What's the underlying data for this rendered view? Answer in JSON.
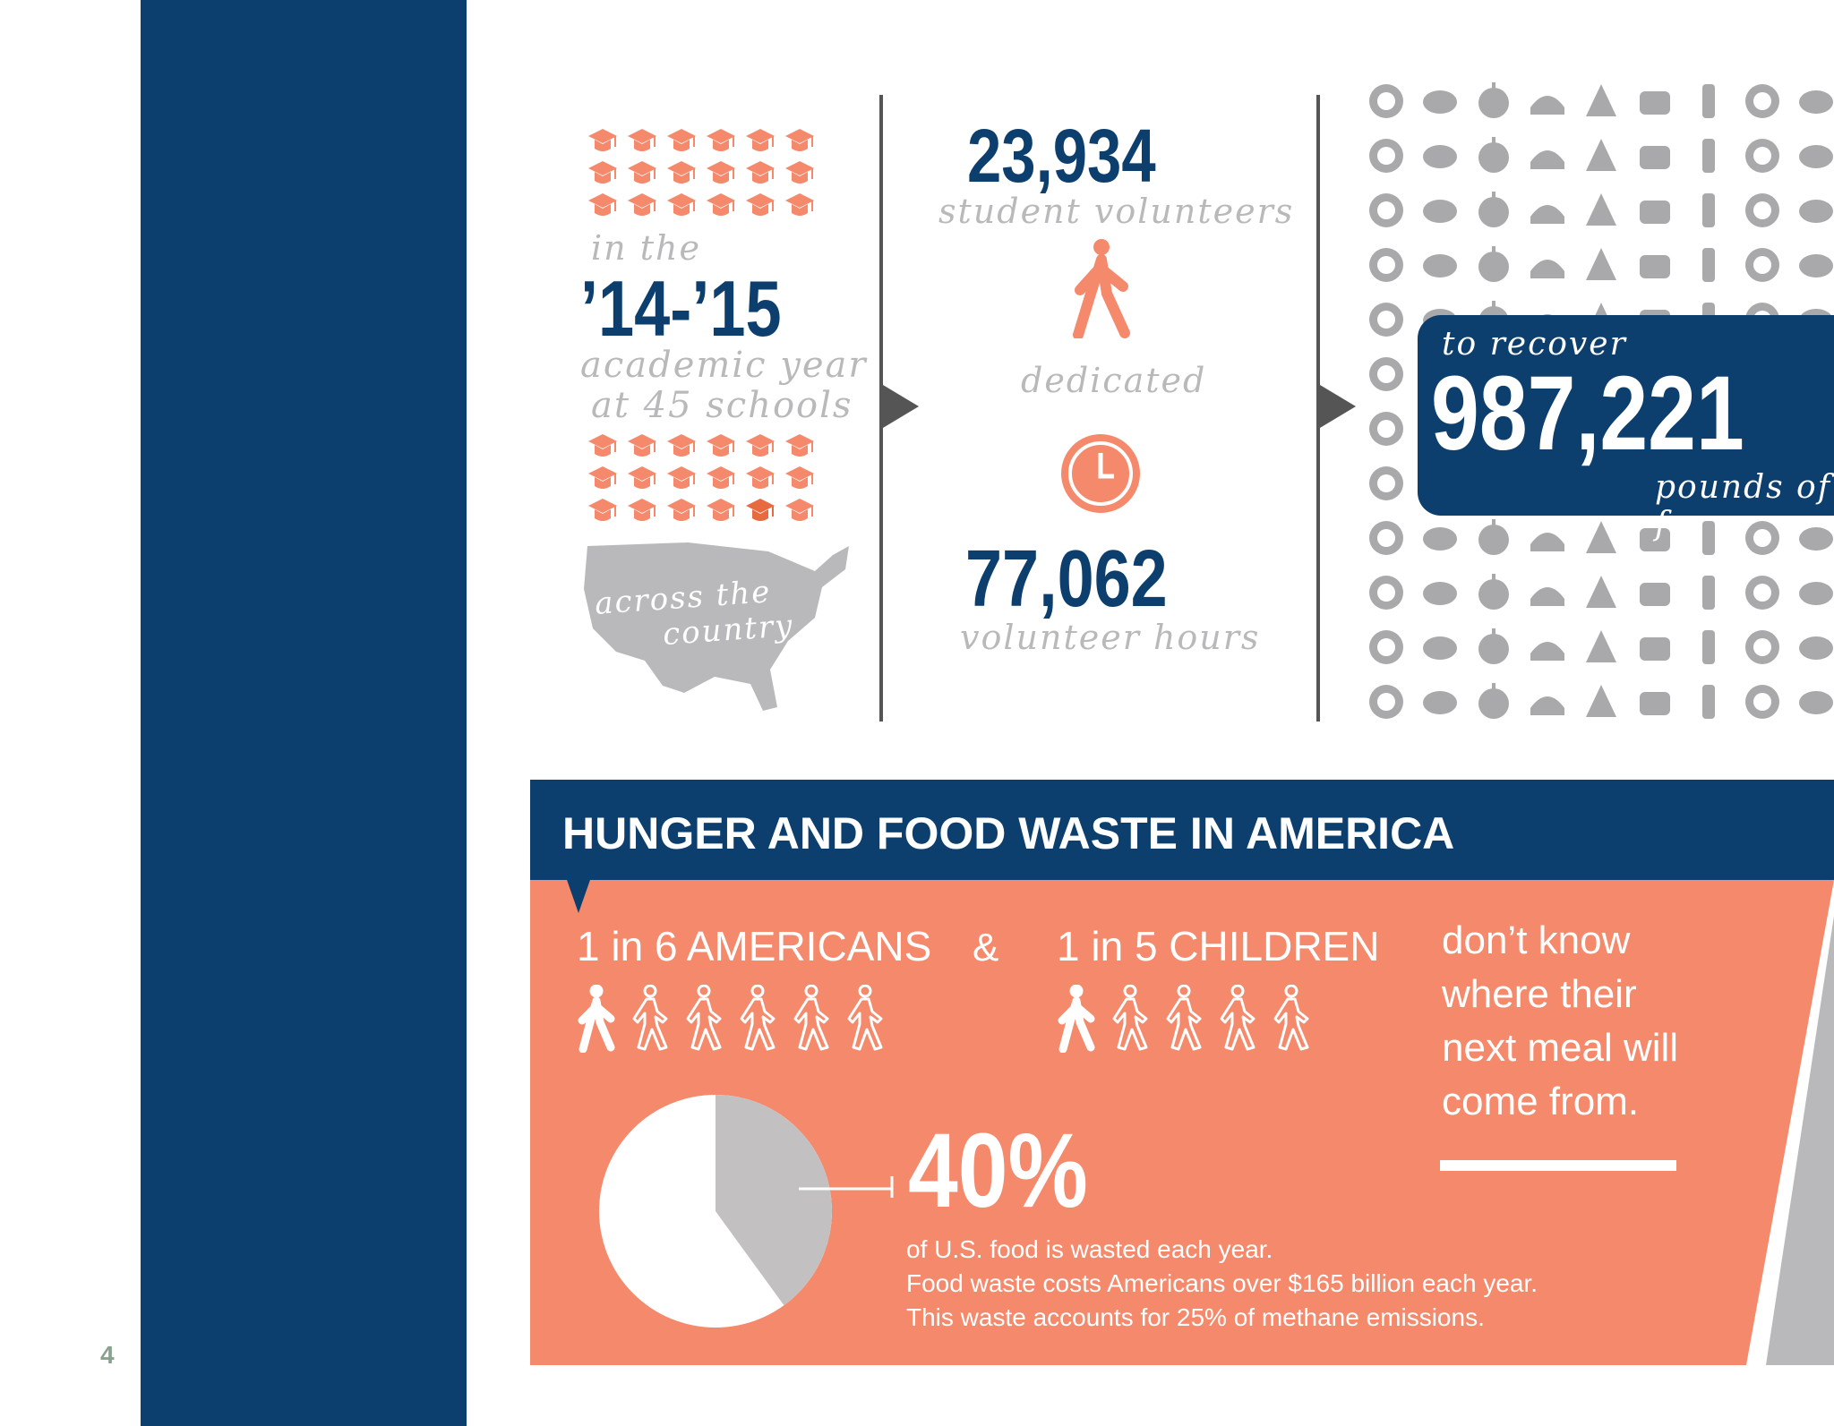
{
  "page_number": "4",
  "stats": {
    "in_the": "in the",
    "academic_year_value": "’14-’15",
    "academic_year_label": "academic year",
    "schools_label": "at 45 schools",
    "across_line1": "across the",
    "across_line2": "country",
    "volunteers_value": "23,934",
    "volunteers_label": "student volunteers",
    "dedicated_label": "dedicated",
    "hours_value": "77,062",
    "hours_label": "volunteer hours",
    "recover_label": "to recover",
    "pounds_value": "987,221",
    "pounds_label": "pounds of f"
  },
  "section": {
    "header": "HUNGER AND FOOD WASTE IN AMERICA",
    "americans_label": "1 in 6 AMERICANS",
    "ampersand": "&",
    "children_label": "1 in 5 CHILDREN",
    "meal_line1": "don’t know",
    "meal_line2": "where their",
    "meal_line3": "next meal will",
    "meal_line4": "come from.",
    "waste_percent": "40%",
    "waste_line1": "of U.S. food is wasted each year.",
    "waste_line2": "Food waste costs Americans over $165 billion each year.",
    "waste_line3": "This waste accounts for 25% of methane emissions."
  },
  "pie": {
    "wasted_fraction": 0.4
  },
  "people": {
    "americans_total": 6,
    "americans_highlight": 1,
    "children_total": 5,
    "children_highlight": 1
  },
  "colors": {
    "navy": "#0c3f6e",
    "orange": "#f4896b",
    "gray": "#b9b9bb",
    "white": "#ffffff"
  },
  "icons": [
    "graduation-cap-icon",
    "walking-person-icon",
    "clock-icon",
    "usa-map-icon",
    "food-icon"
  ]
}
